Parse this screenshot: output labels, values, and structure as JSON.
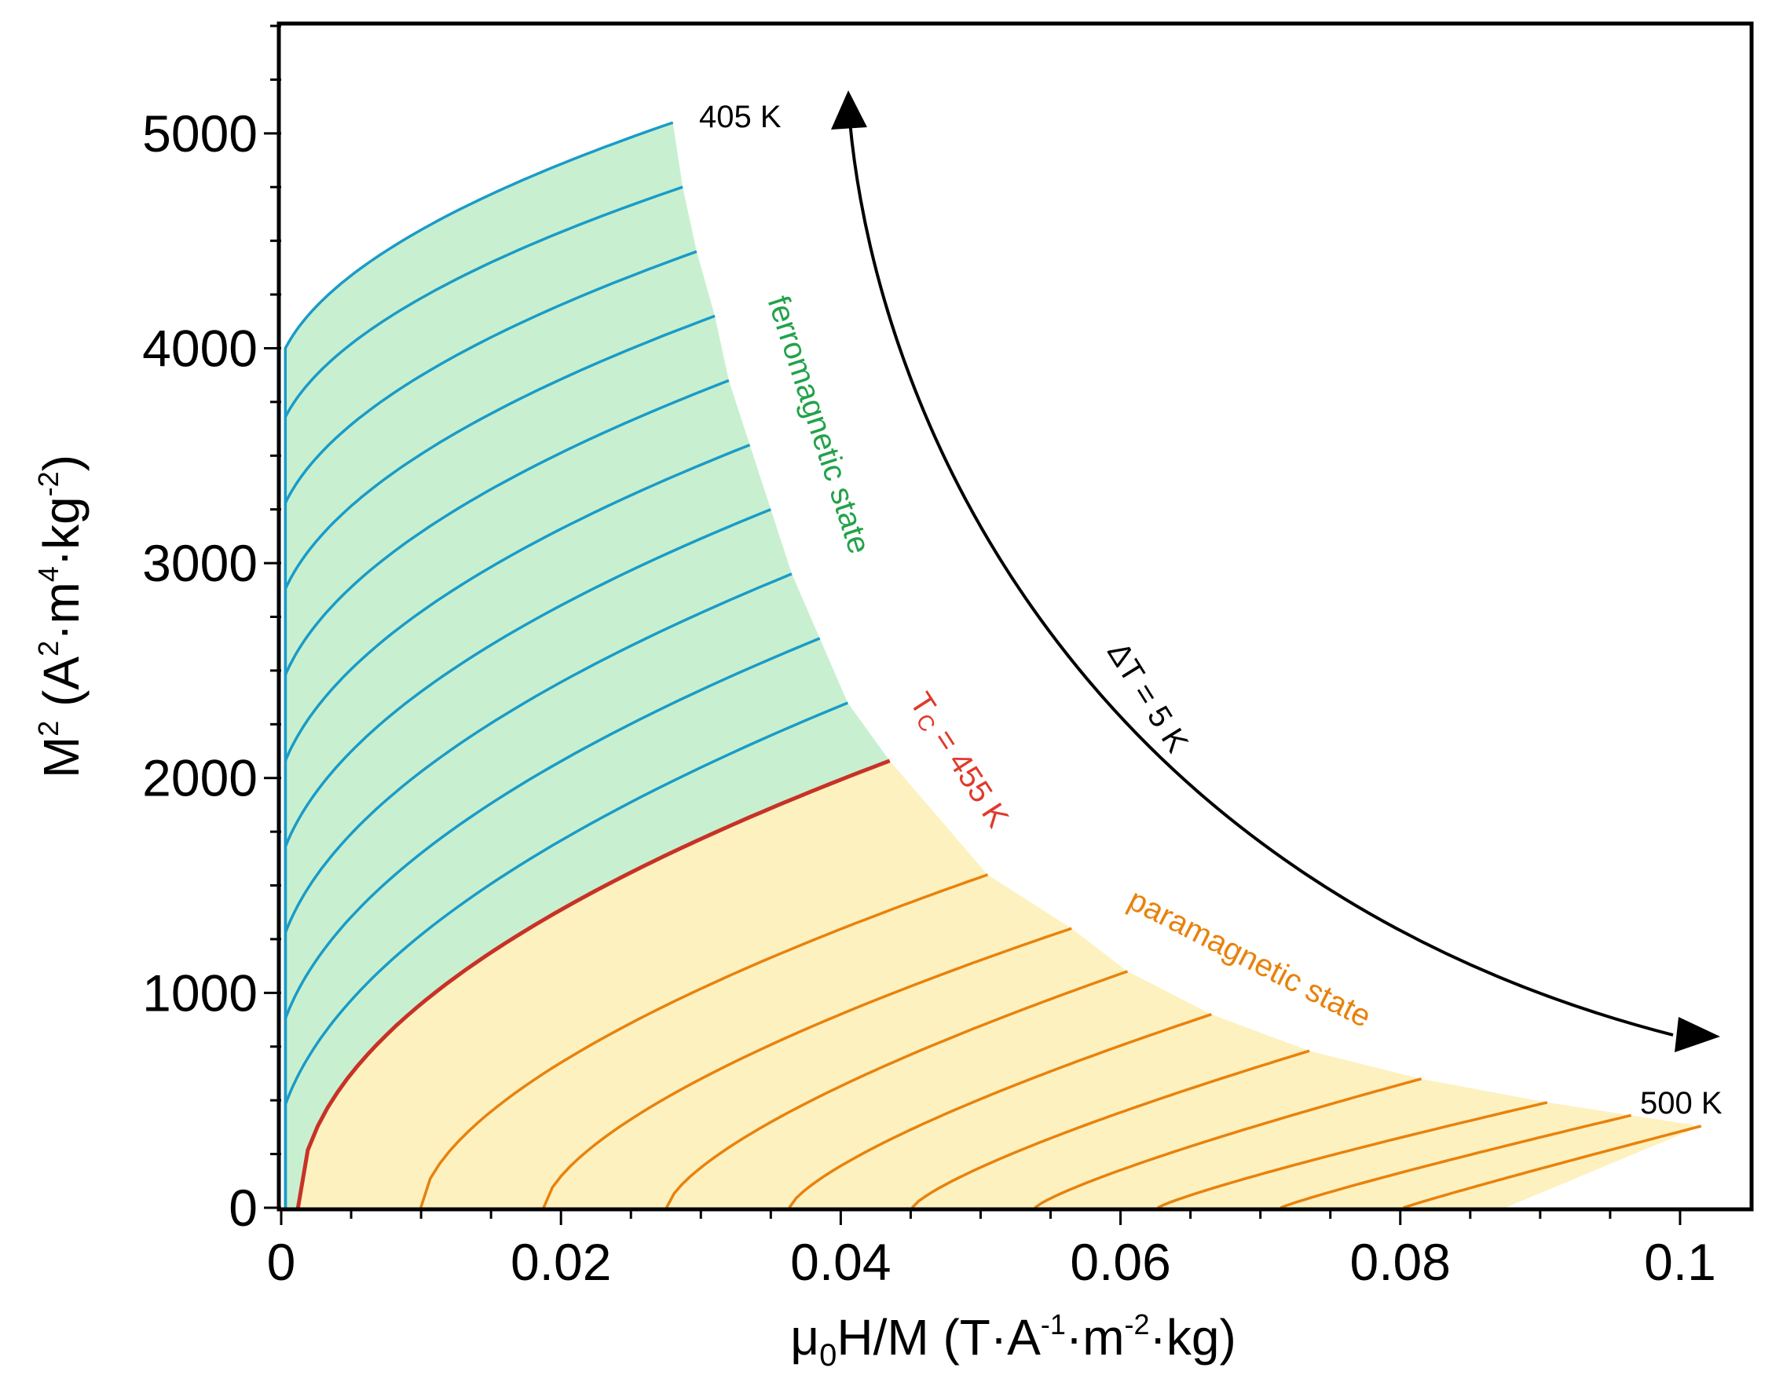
{
  "chart_data": {
    "type": "line",
    "title": "",
    "xlabel": {
      "base": "μ",
      "sub": "0",
      "mid": "H/M (T·A",
      "e1": "-1",
      "m1": "·m",
      "e2": "-2",
      "end": "·kg)"
    },
    "ylabel": {
      "base": "M",
      "e0": "2",
      "mid": " (A",
      "e1": "2",
      "m1": "·m",
      "e2": "4",
      "m2": "·kg",
      "e3": "-2",
      "end": ")"
    },
    "xlim": [
      0,
      0.105
    ],
    "ylim": [
      0,
      5500
    ],
    "x_ticks": [
      0,
      0.02,
      0.04,
      0.06,
      0.08,
      0.1
    ],
    "x_tick_labels": [
      "0",
      "0.02",
      "0.04",
      "0.06",
      "0.08",
      "0.1"
    ],
    "y_ticks": [
      0,
      1000,
      2000,
      3000,
      4000,
      5000
    ],
    "y_tick_labels": [
      "0",
      "1000",
      "2000",
      "3000",
      "4000",
      "5000"
    ],
    "temperatures_K": [
      405,
      410,
      415,
      420,
      425,
      430,
      435,
      440,
      445,
      450,
      455,
      460,
      465,
      470,
      475,
      480,
      485,
      490,
      495,
      500
    ],
    "curie_temperature_K": 455,
    "curve_endpoints": [
      {
        "T": 405,
        "x_end": 0.028,
        "y_end": 5050
      },
      {
        "T": 410,
        "x_end": 0.0287,
        "y_end": 4750
      },
      {
        "T": 415,
        "x_end": 0.0297,
        "y_end": 4450
      },
      {
        "T": 420,
        "x_end": 0.031,
        "y_end": 4150
      },
      {
        "T": 425,
        "x_end": 0.032,
        "y_end": 3850
      },
      {
        "T": 430,
        "x_end": 0.0335,
        "y_end": 3550
      },
      {
        "T": 435,
        "x_end": 0.035,
        "y_end": 3250
      },
      {
        "T": 440,
        "x_end": 0.0365,
        "y_end": 2950
      },
      {
        "T": 445,
        "x_end": 0.0385,
        "y_end": 2650
      },
      {
        "T": 450,
        "x_end": 0.0405,
        "y_end": 2350
      },
      {
        "T": 455,
        "x_end": 0.0435,
        "y_end": 2080
      },
      {
        "T": 460,
        "x_end": 0.0505,
        "y_end": 1550
      },
      {
        "T": 465,
        "x_end": 0.0565,
        "y_end": 1300
      },
      {
        "T": 470,
        "x_end": 0.0605,
        "y_end": 1100
      },
      {
        "T": 475,
        "x_end": 0.0665,
        "y_end": 900
      },
      {
        "T": 480,
        "x_end": 0.0735,
        "y_end": 730
      },
      {
        "T": 485,
        "x_end": 0.0815,
        "y_end": 600
      },
      {
        "T": 490,
        "x_end": 0.0905,
        "y_end": 490
      },
      {
        "T": 495,
        "x_end": 0.0965,
        "y_end": 430
      },
      {
        "T": 500,
        "x_end": 0.1015,
        "y_end": 380
      }
    ],
    "series_colors": {
      "ferromagnetic": "#1a9bc8",
      "critical": "#c83226",
      "paramagnetic": "#e8820c"
    },
    "region_colors": {
      "ferromagnetic": "#c8f0d0",
      "paramagnetic": "#fdf1c0"
    },
    "annotations": {
      "t_start": "405 K",
      "t_end": "500 K",
      "delta_t": "ΔT = 5 K",
      "ferro": "ferromagnetic state",
      "para": "paramagnetic state",
      "tc_t": "T",
      "tc_c": "C",
      "tc_value": " = 455 K"
    },
    "annotation_colors": {
      "ferro": "#22a24a",
      "para": "#e8820c",
      "tc": "#e03a2c",
      "arrow": "#000000"
    }
  }
}
